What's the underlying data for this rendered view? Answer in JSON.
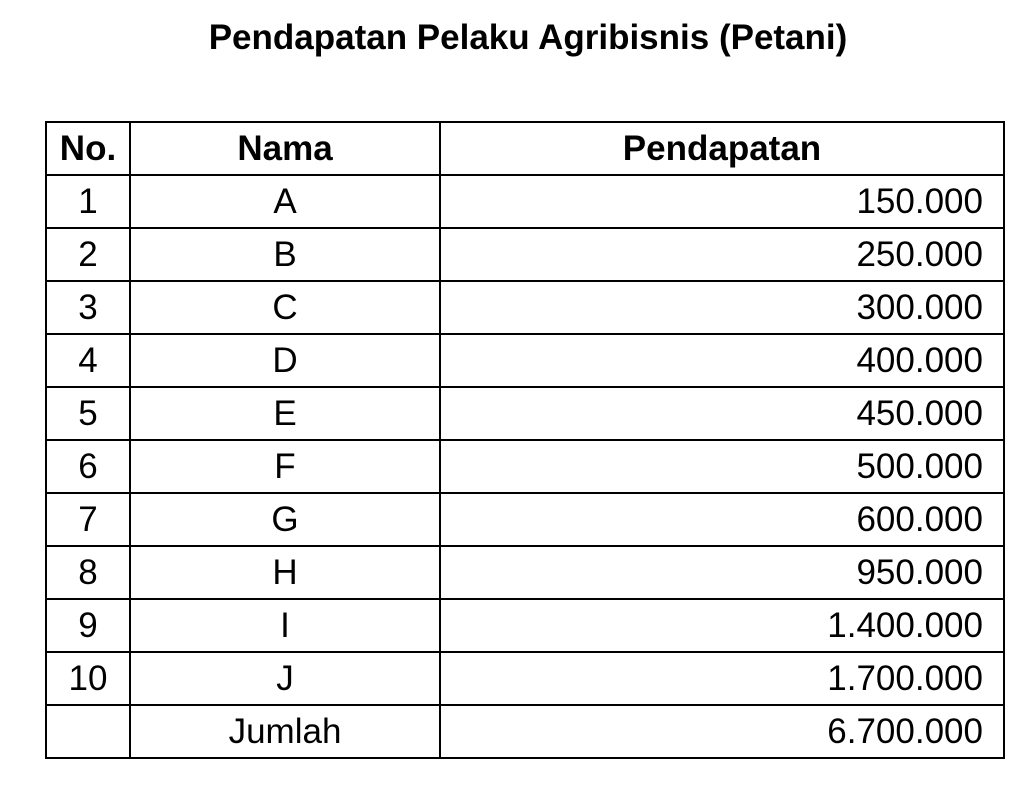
{
  "title": "Pendapatan Pelaku Agribisnis (Petani)",
  "headers": {
    "no": "No.",
    "nama": "Nama",
    "pendapatan": "Pendapatan"
  },
  "rows": [
    {
      "no": "1",
      "nama": "A",
      "pendapatan": "150.000"
    },
    {
      "no": "2",
      "nama": "B",
      "pendapatan": "250.000"
    },
    {
      "no": "3",
      "nama": "C",
      "pendapatan": "300.000"
    },
    {
      "no": "4",
      "nama": "D",
      "pendapatan": "400.000"
    },
    {
      "no": "5",
      "nama": "E",
      "pendapatan": "450.000"
    },
    {
      "no": "6",
      "nama": "F",
      "pendapatan": "500.000"
    },
    {
      "no": "7",
      "nama": "G",
      "pendapatan": "600.000"
    },
    {
      "no": "8",
      "nama": "H",
      "pendapatan": "950.000"
    },
    {
      "no": "9",
      "nama": "I",
      "pendapatan": "1.400.000"
    },
    {
      "no": "10",
      "nama": "J",
      "pendapatan": "1.700.000"
    }
  ],
  "total": {
    "label": "Jumlah",
    "value": "6.700.000"
  }
}
